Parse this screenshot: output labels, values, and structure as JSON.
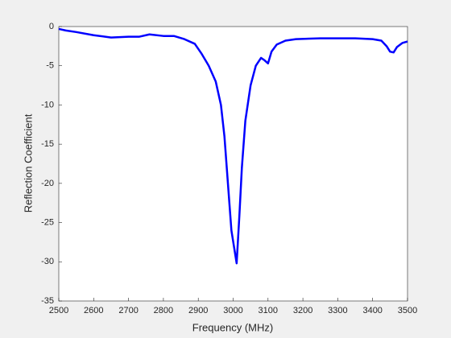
{
  "chart_data": {
    "type": "line",
    "xlabel": "Frequency (MHz)",
    "ylabel": "Reflection Coefficient",
    "x": [
      2500,
      2520,
      2550,
      2600,
      2650,
      2700,
      2730,
      2760,
      2800,
      2830,
      2860,
      2890,
      2910,
      2930,
      2950,
      2965,
      2975,
      2985,
      2995,
      3010,
      3018,
      3025,
      3035,
      3050,
      3065,
      3080,
      3090,
      3100,
      3110,
      3125,
      3150,
      3180,
      3250,
      3350,
      3400,
      3425,
      3440,
      3450,
      3460,
      3470,
      3485,
      3500
    ],
    "series": [
      {
        "color": "#0000ff",
        "values": [
          -0.3,
          -0.5,
          -0.7,
          -1.1,
          -1.4,
          -1.3,
          -1.3,
          -1.0,
          -1.2,
          -1.2,
          -1.6,
          -2.2,
          -3.5,
          -5.0,
          -7.0,
          -10,
          -14,
          -20,
          -26,
          -30.2,
          -24,
          -18,
          -12,
          -7.5,
          -5.0,
          -4.0,
          -4.3,
          -4.7,
          -3.2,
          -2.3,
          -1.8,
          -1.6,
          -1.5,
          -1.5,
          -1.6,
          -1.8,
          -2.5,
          -3.2,
          -3.3,
          -2.6,
          -2.1,
          -1.9
        ]
      }
    ],
    "xlim": [
      2500,
      3500
    ],
    "xticks": [
      2500,
      2600,
      2700,
      2800,
      2900,
      3000,
      3100,
      3200,
      3300,
      3400,
      3500
    ],
    "ylim": [
      -35,
      0
    ],
    "yticks": [
      -35,
      -30,
      -25,
      -20,
      -15,
      -10,
      -5,
      0
    ]
  }
}
